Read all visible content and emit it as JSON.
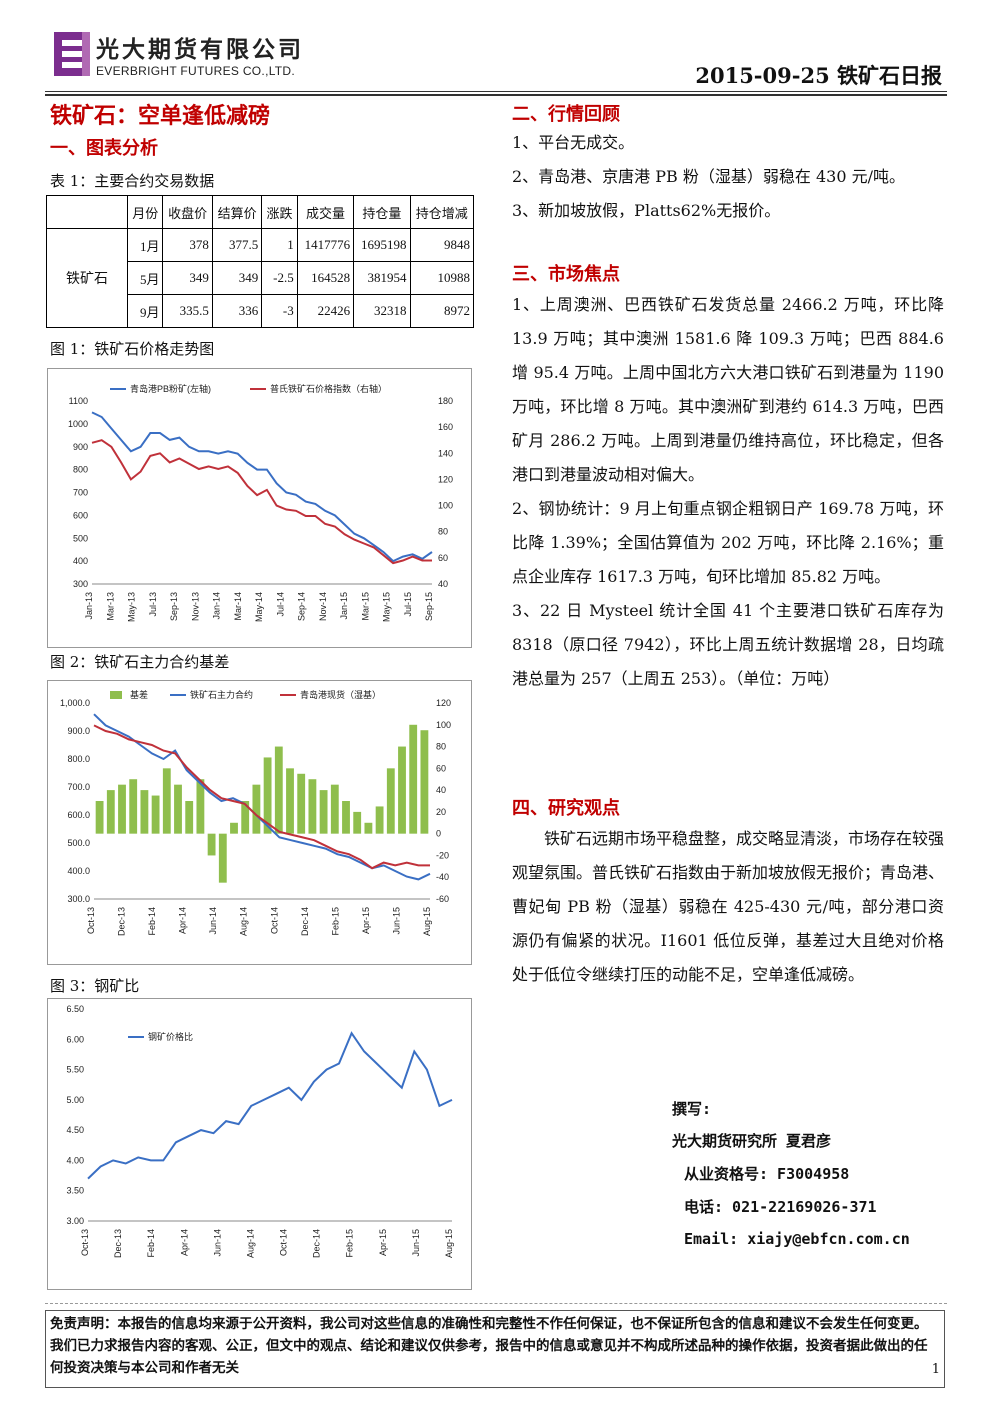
{
  "header": {
    "company_cn": "光大期货有限公司",
    "company_en": "EVERBRIGHT FUTURES CO.,LTD.",
    "date_title": "2015-09-25 铁矿石日报",
    "logo_colors": [
      "#7b2d8e",
      "#b06ab3"
    ]
  },
  "left": {
    "headline": "铁矿石：空单逢低减磅",
    "section1": "一、图表分析",
    "table_caption": "表 1：主要合约交易数据",
    "fig1_caption": "图 1：铁矿石价格走势图",
    "fig2_caption": "图 2：铁矿石主力合约基差",
    "fig3_caption": "图 3：钢矿比"
  },
  "table": {
    "headers": [
      "月份",
      "收盘价",
      "结算价",
      "涨跌",
      "成交量",
      "持仓量",
      "持仓增减"
    ],
    "product": "铁矿石",
    "rows": [
      [
        "1月",
        "378",
        "377.5",
        "1",
        "1417776",
        "1695198",
        "9848"
      ],
      [
        "5月",
        "349",
        "349",
        "-2.5",
        "164528",
        "381954",
        "10988"
      ],
      [
        "9月",
        "335.5",
        "336",
        "-3",
        "22426",
        "32318",
        "8972"
      ]
    ]
  },
  "chart_data": [
    {
      "type": "line",
      "legend": [
        "青岛港PB粉矿(左轴)",
        "普氏铁矿石价格指数（右轴）"
      ],
      "colors": [
        "#3a6fc4",
        "#c0313a"
      ],
      "x_ticks": [
        "Jan-13",
        "Mar-13",
        "May-13",
        "Jul-13",
        "Sep-13",
        "Nov-13",
        "Jan-14",
        "Mar-14",
        "May-14",
        "Jul-14",
        "Sep-14",
        "Nov-14",
        "Jan-15",
        "Mar-15",
        "May-15",
        "Jul-15",
        "Sep-15"
      ],
      "ylim_left": [
        300,
        1100
      ],
      "y_ticks_left": [
        "1100",
        "1000",
        "900",
        "800",
        "700",
        "600",
        "500",
        "400",
        "300"
      ],
      "ylim_right": [
        40,
        180
      ],
      "y_ticks_right": [
        "180",
        "160",
        "140",
        "120",
        "100",
        "80",
        "60",
        "40"
      ],
      "series": [
        {
          "name": "青岛港PB粉矿(左轴)",
          "axis": "left",
          "values": [
            1050,
            1030,
            980,
            930,
            880,
            900,
            960,
            960,
            930,
            940,
            900,
            880,
            880,
            870,
            880,
            870,
            830,
            800,
            800,
            740,
            700,
            690,
            660,
            650,
            620,
            600,
            560,
            520,
            500,
            470,
            440,
            400,
            420,
            430,
            410,
            440
          ]
        },
        {
          "name": "普氏铁矿石价格指数（右轴）",
          "axis": "right",
          "values": [
            148,
            150,
            145,
            133,
            120,
            126,
            138,
            140,
            133,
            136,
            132,
            128,
            130,
            128,
            130,
            125,
            115,
            108,
            112,
            100,
            97,
            96,
            92,
            92,
            86,
            84,
            78,
            74,
            71,
            68,
            62,
            56,
            58,
            61,
            58,
            58
          ]
        }
      ]
    },
    {
      "type": "bar",
      "legend": [
        "基差",
        "铁矿石主力合约",
        "青岛港现货（湿基）"
      ],
      "colors": [
        "#8fbe4d",
        "#3a6fc4",
        "#c0313a"
      ],
      "x_ticks": [
        "Oct-13",
        "Dec-13",
        "Feb-14",
        "Apr-14",
        "Jun-14",
        "Aug-14",
        "Oct-14",
        "Dec-14",
        "Feb-15",
        "Apr-15",
        "Jun-15",
        "Aug-15"
      ],
      "ylim_left": [
        300,
        1000
      ],
      "y_ticks_left": [
        "1,000.0",
        "900.0",
        "800.0",
        "700.0",
        "600.0",
        "500.0",
        "400.0",
        "300.0"
      ],
      "ylim_right": [
        -60,
        120
      ],
      "y_ticks_right": [
        "120",
        "100",
        "80",
        "60",
        "40",
        "20",
        "0",
        "-20",
        "-40",
        "-60"
      ],
      "series": [
        {
          "name": "基差",
          "axis": "right",
          "values": [
            30,
            40,
            45,
            50,
            40,
            35,
            60,
            45,
            30,
            50,
            -20,
            -45,
            10,
            30,
            45,
            70,
            80,
            60,
            55,
            50,
            40,
            45,
            30,
            20,
            10,
            25,
            60,
            80,
            100,
            95
          ]
        },
        {
          "name": "铁矿石主力合约",
          "axis": "left",
          "values": [
            960,
            920,
            900,
            880,
            850,
            820,
            800,
            830,
            760,
            720,
            680,
            650,
            660,
            640,
            600,
            560,
            520,
            510,
            500,
            490,
            480,
            460,
            450,
            430,
            410,
            420,
            400,
            380,
            370,
            390
          ]
        },
        {
          "name": "青岛港现货（湿基）",
          "axis": "left",
          "values": [
            920,
            900,
            890,
            870,
            860,
            850,
            830,
            820,
            770,
            730,
            690,
            660,
            650,
            640,
            600,
            570,
            540,
            530,
            520,
            510,
            490,
            470,
            460,
            440,
            410,
            430,
            420,
            430,
            420,
            420
          ]
        }
      ]
    },
    {
      "type": "line",
      "legend": [
        "钢矿价格比"
      ],
      "colors": [
        "#3a6fc4"
      ],
      "x_ticks": [
        "Oct-13",
        "Dec-13",
        "Feb-14",
        "Apr-14",
        "Jun-14",
        "Aug-14",
        "Oct-14",
        "Dec-14",
        "Feb-15",
        "Apr-15",
        "Jun-15",
        "Aug-15"
      ],
      "ylim": [
        3.0,
        6.5
      ],
      "y_ticks": [
        "6.50",
        "6.00",
        "5.50",
        "5.00",
        "4.50",
        "4.00",
        "3.50",
        "3.00"
      ],
      "series": [
        {
          "name": "钢矿价格比",
          "values": [
            3.7,
            3.9,
            4.0,
            3.95,
            4.05,
            4.0,
            4.0,
            4.3,
            4.4,
            4.5,
            4.45,
            4.65,
            4.6,
            4.9,
            5.0,
            5.1,
            5.2,
            5.0,
            5.3,
            5.5,
            5.6,
            6.1,
            5.8,
            5.6,
            5.4,
            5.2,
            5.8,
            5.5,
            4.9,
            5.0
          ]
        }
      ]
    }
  ],
  "right": {
    "section2": "二、行情回顾",
    "review": [
      "1、平台无成交。",
      "2、青岛港、京唐港 PB 粉（湿基）弱稳在 430 元/吨。",
      "3、新加坡放假，Platts62%无报价。"
    ],
    "section3": "三、市场焦点",
    "focus": [
      "1、上周澳洲、巴西铁矿石发货总量 2466.2 万吨，环比降 13.9 万吨；其中澳洲 1581.6 降 109.3 万吨；巴西 884.6 增 95.4 万吨。上周中国北方六大港口铁矿石到港量为 1190 万吨，环比增 8 万吨。其中澳洲矿到港约 614.3 万吨，巴西矿月 286.2 万吨。上周到港量仍维持高位，环比稳定，但各港口到港量波动相对偏大。",
      "2、钢协统计：9 月上旬重点钢企粗钢日产 169.78 万吨，环比降 1.39%；全国估算值为 202 万吨，环比降 2.16%；重点企业库存 1617.3 万吨，旬环比增加 85.82 万吨。",
      "3、22 日 Mysteel 统计全国 41 个主要港口铁矿石库存为 8318（原口径 7942），环比上周五统计数据增 28，日均疏港总量为 257（上周五 253）。（单位：万吨）"
    ],
    "section4": "四、研究观点",
    "opinion": "铁矿石远期市场平稳盘整，成交略显清淡，市场存在较强观望氛围。普氏铁矿石指数由于新加坡放假无报价；青岛港、曹妃甸 PB 粉（湿基）弱稳在 425-430 元/吨，部分港口资源仍有偏紧的状况。I1601 低位反弹，基差过大且绝对价格处于低位令继续打压的动能不足，空单逢低减磅。"
  },
  "author": {
    "label": "撰写:",
    "org": "光大期货研究所 夏君彦",
    "license": "从业资格号: F3004958",
    "phone": "电话: 021-22169026-371",
    "email": "Email: xiajy@ebfcn.com.cn"
  },
  "footer": {
    "disclaimer": "免责声明：本报告的信息均来源于公开资料，我公司对这些信息的准确性和完整性不作任何保证，也不保证所包含的信息和建议不会发生任何变更。我们已力求报告内容的客观、公正，但文中的观点、结论和建议仅供参考，报告中的信息或意见并不构成所述品种的操作依据，投资者据此做出的任何投资决策与本公司和作者无关",
    "page": "1"
  }
}
